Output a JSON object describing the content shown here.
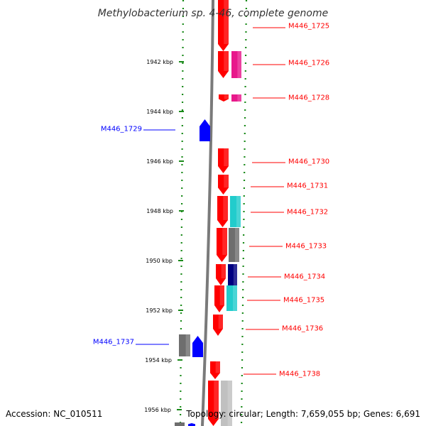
{
  "title": "Methylobacterium sp. 4-46, complete genome",
  "footer": {
    "accession": "Accession: NC_010511",
    "topology": "Topology: circular; Length: 7,659,055 bp; Genes: 6,691"
  },
  "colors": {
    "gene_red": "#ff0000",
    "gene_blue": "#0000ff",
    "magenta": "#e8198b",
    "cyan": "#22cccc",
    "dark_gray": "#6e6e6e",
    "light_gray": "#c0c0c0",
    "navy": "#000080",
    "dotted_green": "#1a8a1a",
    "axis_gray": "#888888"
  },
  "scale": [
    {
      "label": "1942 kbp"
    },
    {
      "label": "1944 kbp"
    },
    {
      "label": "1946 kbp"
    },
    {
      "label": "1948 kbp"
    },
    {
      "label": "1950 kbp"
    },
    {
      "label": "1952 kbp"
    },
    {
      "label": "1954 kbp"
    },
    {
      "label": "1956 kbp"
    }
  ],
  "gene_labels": [
    {
      "text": "M446_1725",
      "color": "red"
    },
    {
      "text": "M446_1726",
      "color": "red"
    },
    {
      "text": "M446_1728",
      "color": "red"
    },
    {
      "text": "M446_1729",
      "color": "blue"
    },
    {
      "text": "M446_1730",
      "color": "red"
    },
    {
      "text": "M446_1731",
      "color": "red"
    },
    {
      "text": "M446_1732",
      "color": "red"
    },
    {
      "text": "M446_1733",
      "color": "red"
    },
    {
      "text": "M446_1734",
      "color": "red"
    },
    {
      "text": "M446_1735",
      "color": "red"
    },
    {
      "text": "M446_1736",
      "color": "red"
    },
    {
      "text": "M446_1737",
      "color": "blue"
    },
    {
      "text": "M446_1738",
      "color": "red"
    }
  ]
}
